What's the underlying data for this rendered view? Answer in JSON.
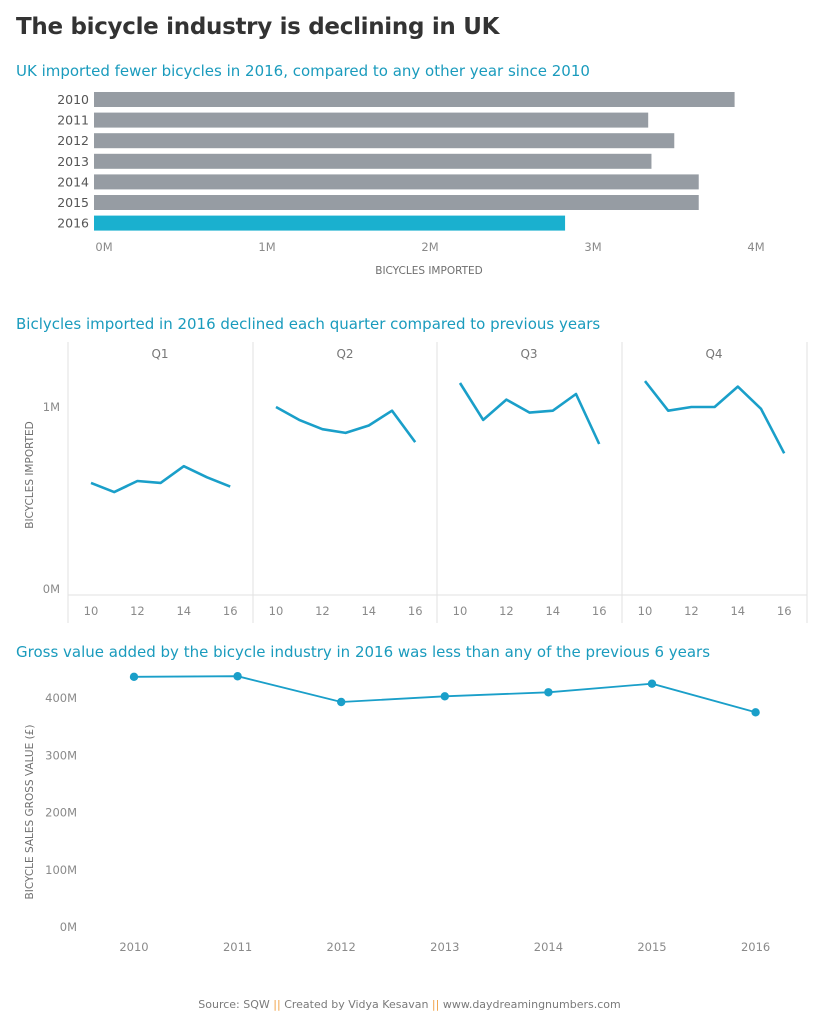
{
  "title": "The bicycle industry is declining in UK",
  "charts": {
    "imports_by_year": {
      "title": "UK imported fewer bicycles in 2016, compared to any other year since 2010",
      "xlabel": "BICYCLES IMPORTED",
      "tick_labels": [
        "0M",
        "1M",
        "2M",
        "3M",
        "4M"
      ],
      "colors": {
        "default": "#969ca3",
        "highlight": "#1ab0cf"
      }
    },
    "quarterly": {
      "title": "Biclycles imported in 2016 declined each quarter compared to previous years",
      "ylabel": "BICYCLES IMPORTED",
      "y_tick_labels": [
        "1M",
        "0M"
      ],
      "x_tick_labels": [
        "10",
        "12",
        "14",
        "16"
      ],
      "color": "#1a9fc9"
    },
    "gross_value": {
      "title": "Gross value added by the bicycle industry in 2016 was less than any of the previous 6 years",
      "ylabel": "BICYCLE SALES GROSS VALUE (£)",
      "y_tick_labels": [
        "400M",
        "300M",
        "200M",
        "100M",
        "0M"
      ],
      "color": "#1a9fc9"
    }
  },
  "chart_data": [
    {
      "type": "bar",
      "orientation": "horizontal",
      "title": "UK imported fewer bicycles in 2016, compared to any other year since 2010",
      "xlabel": "BICYCLES IMPORTED",
      "categories": [
        "2010",
        "2011",
        "2012",
        "2013",
        "2014",
        "2015",
        "2016"
      ],
      "values": [
        3.93,
        3.4,
        3.56,
        3.42,
        3.71,
        3.71,
        2.89
      ],
      "units": "millions",
      "xlim": [
        0,
        4.2
      ],
      "highlight": "2016",
      "grid": false
    },
    {
      "type": "line",
      "title": "Biclycles imported in 2016 declined each quarter compared to previous years",
      "ylabel": "BICYCLES IMPORTED",
      "panels": [
        "Q1",
        "Q2",
        "Q3",
        "Q4"
      ],
      "x": [
        2010,
        2011,
        2012,
        2013,
        2014,
        2015,
        2016
      ],
      "units": "millions",
      "ylim": [
        0,
        1.2
      ],
      "series": [
        {
          "panel": "Q1",
          "values": [
            0.59,
            0.54,
            0.6,
            0.59,
            0.68,
            0.62,
            0.57
          ]
        },
        {
          "panel": "Q2",
          "values": [
            1.0,
            0.93,
            0.88,
            0.86,
            0.9,
            0.98,
            0.81
          ]
        },
        {
          "panel": "Q3",
          "values": [
            1.13,
            0.93,
            1.04,
            0.97,
            0.98,
            1.07,
            0.8
          ]
        },
        {
          "panel": "Q4",
          "values": [
            1.14,
            0.98,
            1.0,
            1.0,
            1.11,
            0.99,
            0.75
          ]
        }
      ]
    },
    {
      "type": "line",
      "title": "Gross value added by the bicycle industry in 2016 was less than any of the previous 6 years",
      "ylabel": "BICYCLE SALES GROSS VALUE (£)",
      "categories": [
        "2010",
        "2011",
        "2012",
        "2013",
        "2014",
        "2015",
        "2016"
      ],
      "values": [
        437,
        438,
        393,
        403,
        410,
        425,
        375
      ],
      "units": "£ millions",
      "ylim": [
        0,
        460
      ],
      "markers": true,
      "grid": false
    }
  ],
  "footer": {
    "source": "Source: SQW",
    "separator": "||",
    "credit": "Created by Vidya Kesavan",
    "site": "www.daydreamingnumbers.com"
  }
}
